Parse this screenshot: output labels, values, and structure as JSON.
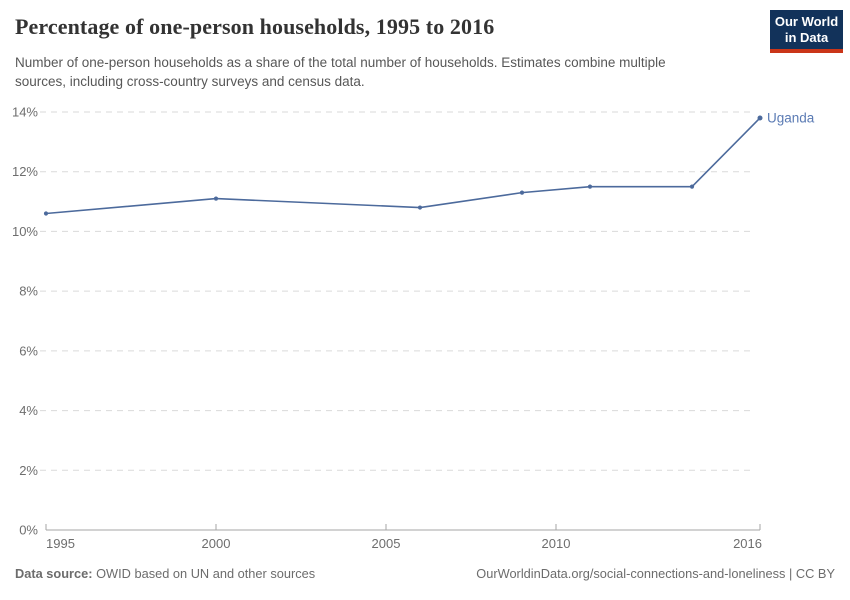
{
  "header": {
    "title": "Percentage of one-person households, 1995 to 2016",
    "subtitle_line1": "Number of one-person households as a share of the total number of households. Estimates combine multiple",
    "subtitle_line2": "sources, including cross-country surveys and census data.",
    "logo": {
      "line1": "Our World",
      "line2": "in Data"
    }
  },
  "chart_data": {
    "type": "line",
    "title": "Percentage of one-person households, 1995 to 2016",
    "x": [
      1995,
      2000,
      2006,
      2009,
      2011,
      2014,
      2016
    ],
    "series": [
      {
        "name": "Uganda",
        "values": [
          10.6,
          11.1,
          10.8,
          11.3,
          11.5,
          11.5,
          13.8
        ]
      }
    ],
    "end_label": "Uganda",
    "x_ticks": [
      1995,
      2000,
      2005,
      2010,
      2016
    ],
    "y_ticks": [
      0,
      2,
      4,
      6,
      8,
      10,
      12,
      14
    ],
    "y_tick_suffix": "%",
    "xlim": [
      1995,
      2016
    ],
    "ylim": [
      0,
      14
    ],
    "grid": "horizontal-dashed",
    "legend_position": "end-of-line"
  },
  "footer": {
    "source_label": "Data source:",
    "source_text": "OWID based on UN and other sources",
    "citation": "OurWorldinData.org/social-connections-and-loneliness | CC BY"
  },
  "colors": {
    "line": "#4c6a9c",
    "series_label": "#5b7bb4",
    "grid": "#dadada",
    "axis": "#a5a5a5",
    "tick_text": "#6e6e6e",
    "logo_bg": "#12325a",
    "logo_bar": "#ca3518"
  }
}
